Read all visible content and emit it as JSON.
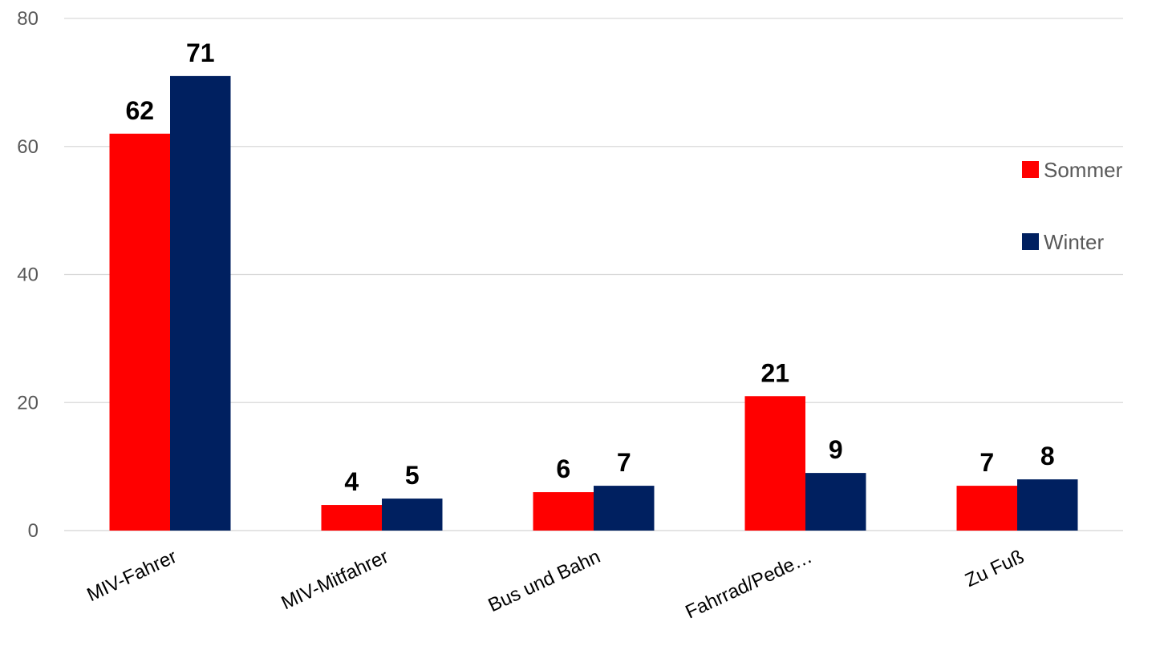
{
  "chart_data": {
    "type": "bar",
    "categories": [
      "MIV-Fahrer",
      "MIV-Mitfahrer",
      "Bus und Bahn",
      "Fahrrad/Pede…",
      "Zu Fuß"
    ],
    "series": [
      {
        "name": "Sommer",
        "values": [
          62,
          4,
          6,
          21,
          7
        ],
        "color": "#ff0000"
      },
      {
        "name": "Winter",
        "values": [
          71,
          5,
          7,
          9,
          8
        ],
        "color": "#002060"
      }
    ],
    "y_ticks": [
      "0",
      "20",
      "40",
      "60",
      "80"
    ],
    "ylim": [
      0,
      80
    ],
    "grid": true,
    "legend_position": "right",
    "title": "",
    "xlabel": "",
    "ylabel": ""
  }
}
